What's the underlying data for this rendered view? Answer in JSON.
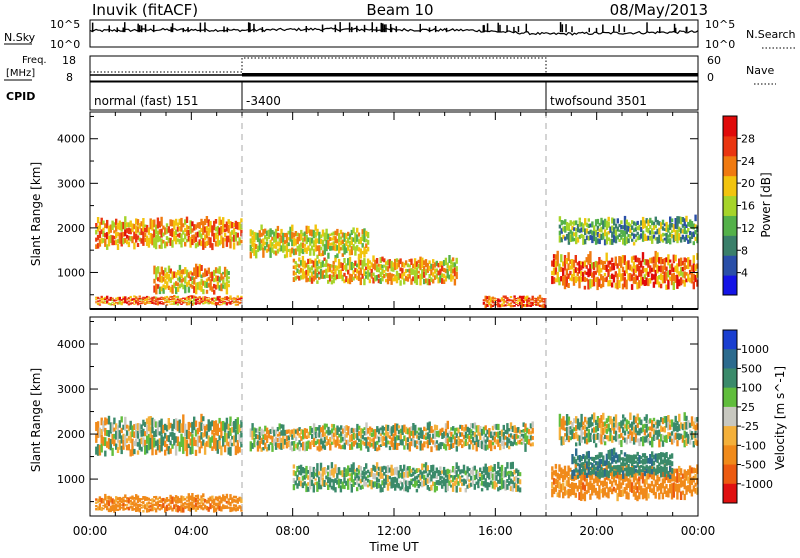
{
  "header": {
    "station": "Inuvik (fitACF)",
    "beam": "Beam 10",
    "date": "08/May/2013"
  },
  "strips": {
    "nsky_label": "N.Sky",
    "nsky_ticks": [
      "10^5",
      "10^0"
    ],
    "nsearch_label": "N.Search",
    "nsearch_ticks": [
      "10^5",
      "10^0"
    ],
    "freq_label": "Freq.",
    "freq_unit": "[MHz]",
    "freq_ticks": [
      "18",
      "8"
    ],
    "nave_label": "Nave",
    "nave_ticks": [
      "60",
      "0"
    ],
    "cpid_label": "CPID",
    "cpid_segments": [
      {
        "label": "normal (fast) 151",
        "start_hour": 0,
        "end_hour": 6
      },
      {
        "label": "-3400",
        "start_hour": 6,
        "end_hour": 18
      },
      {
        "label": "twofsound 3501",
        "start_hour": 18,
        "end_hour": 24
      }
    ]
  },
  "axes": {
    "xlabel": "Time UT",
    "x_ticks": [
      "00:00",
      "04:00",
      "08:00",
      "12:00",
      "16:00",
      "20:00",
      "00:00"
    ],
    "ylabel": "Slant Range [km]",
    "y_ticks": [
      "1000",
      "2000",
      "3000",
      "4000"
    ]
  },
  "power_colorbar": {
    "label": "Power [dB]",
    "ticks": [
      "4",
      "8",
      "12",
      "16",
      "20",
      "24",
      "28"
    ],
    "colors": [
      "#1414e6",
      "#2a4fa8",
      "#3a7f6a",
      "#54b14a",
      "#a6d42a",
      "#f2c40e",
      "#f07a10",
      "#ea3510",
      "#e00a0a"
    ]
  },
  "velocity_colorbar": {
    "label": "Velocity [m s^-1]",
    "ticks": [
      "1000",
      "500",
      "100",
      "25",
      "-25",
      "-100",
      "-500",
      "-1000"
    ],
    "colors": [
      "#1a3fd0",
      "#2c6b8e",
      "#3a8a6a",
      "#60bd3c",
      "#c8c8c0",
      "#f4b03a",
      "#f08a1a",
      "#ec5a10",
      "#e01010"
    ]
  },
  "chart_data": [
    {
      "type": "line",
      "title": "N.Sky / N.Search",
      "x": [
        0,
        3,
        6,
        9,
        12,
        15,
        18,
        21,
        24
      ],
      "series": [
        {
          "name": "N.Sky",
          "values": [
            3.0,
            3.2,
            3.1,
            3.3,
            3.2,
            3.1,
            2.4,
            2.6,
            2.8
          ]
        }
      ],
      "xlabel": "Time UT",
      "ylabel": "N.Sky",
      "ylim": [
        0,
        5
      ]
    },
    {
      "type": "line",
      "title": "Freq. / Nave",
      "x": [
        0,
        6,
        6,
        18,
        18,
        24
      ],
      "series": [
        {
          "name": "Freq.",
          "values": [
            10.4,
            10.4,
            10.4,
            10.4,
            10.5,
            10.5
          ]
        }
      ],
      "xlabel": "Time UT",
      "ylabel": "Freq. [MHz]",
      "ylim": [
        8,
        18
      ]
    },
    {
      "type": "heatmap",
      "title": "Power",
      "xlabel": "Time UT",
      "ylabel": "Slant Range [km]",
      "xlim": [
        0,
        24
      ],
      "ylim": [
        180,
        4600
      ],
      "colorbar": "Power [dB]",
      "bands": [
        {
          "start_hour": 0.2,
          "end_hour": 6.0,
          "range_km": [
            1500,
            2300
          ],
          "power_db": 22
        },
        {
          "start_hour": 0.2,
          "end_hour": 6.0,
          "range_km": [
            250,
            500
          ],
          "power_db": 24
        },
        {
          "start_hour": 2.5,
          "end_hour": 5.5,
          "range_km": [
            500,
            1200
          ],
          "power_db": 20
        },
        {
          "start_hour": 6.3,
          "end_hour": 11.0,
          "range_km": [
            1300,
            2100
          ],
          "power_db": 18
        },
        {
          "start_hour": 8.0,
          "end_hour": 14.5,
          "range_km": [
            700,
            1400
          ],
          "power_db": 20
        },
        {
          "start_hour": 15.5,
          "end_hour": 18.0,
          "range_km": [
            200,
            500
          ],
          "power_db": 26
        },
        {
          "start_hour": 18.2,
          "end_hour": 24.0,
          "range_km": [
            600,
            1500
          ],
          "power_db": 24
        },
        {
          "start_hour": 18.5,
          "end_hour": 24.0,
          "range_km": [
            1600,
            2300
          ],
          "power_db": 12
        }
      ]
    },
    {
      "type": "heatmap",
      "title": "Velocity",
      "xlabel": "Time UT",
      "ylabel": "Slant Range [km]",
      "xlim": [
        0,
        24
      ],
      "ylim": [
        180,
        4600
      ],
      "colorbar": "Velocity [m s^-1]",
      "bands": [
        {
          "start_hour": 0.2,
          "end_hour": 6.0,
          "range_km": [
            1500,
            2500
          ],
          "velocity": 0
        },
        {
          "start_hour": 0.2,
          "end_hour": 6.0,
          "range_km": [
            250,
            700
          ],
          "velocity": -300
        },
        {
          "start_hour": 6.3,
          "end_hour": 17.5,
          "range_km": [
            1600,
            2300
          ],
          "velocity": 0
        },
        {
          "start_hour": 8.0,
          "end_hour": 17.0,
          "range_km": [
            700,
            1400
          ],
          "velocity": 150
        },
        {
          "start_hour": 18.2,
          "end_hour": 24.0,
          "range_km": [
            500,
            1400
          ],
          "velocity": -300
        },
        {
          "start_hour": 19.0,
          "end_hour": 23.0,
          "range_km": [
            1000,
            1700
          ],
          "velocity": 400
        },
        {
          "start_hour": 18.5,
          "end_hour": 24.0,
          "range_km": [
            1700,
            2500
          ],
          "velocity": 60
        }
      ]
    }
  ]
}
